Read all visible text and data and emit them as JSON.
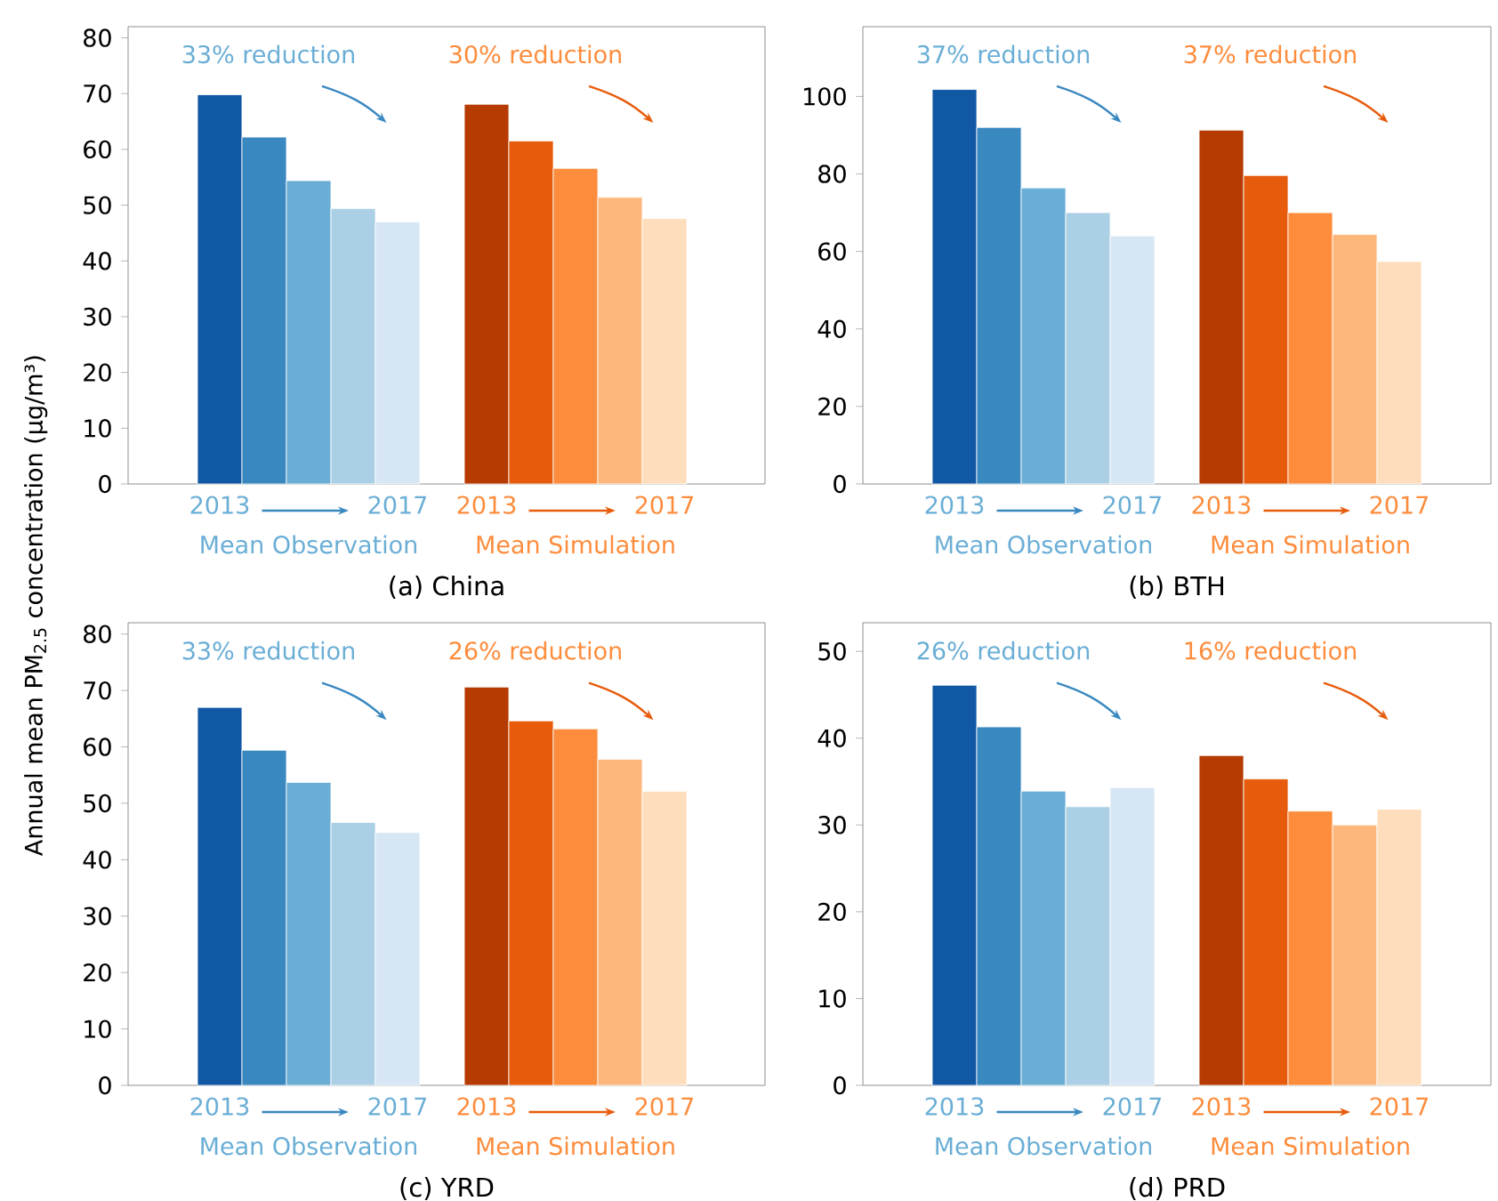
{
  "chart_data": [
    {
      "type": "bar",
      "title": "(a) China",
      "legend": "bottom",
      "ylabel": "Annual mean PM$_{2.5}$ concentration (μg/m³)",
      "categories": [
        "2013",
        null,
        null,
        null,
        "2017",
        null,
        "2013",
        null,
        null,
        null,
        "2017"
      ],
      "series": [
        {
          "name": "Mean Observation",
          "colors": [
            "#1158a4",
            "#3a88c0",
            "#6aaed6",
            "#abd0e6",
            "#d6e6f4",
            null,
            null,
            null,
            null,
            null,
            null
          ],
          "values": [
            69.8,
            62.2,
            54.4,
            49.4,
            47.0,
            null,
            null,
            null,
            null,
            null,
            null
          ]
        },
        {
          "name": "Mean Simulation",
          "colors": [
            null,
            null,
            null,
            null,
            null,
            null,
            "#b63b02",
            "#e75c0c",
            "#fd8c3c",
            "#fdb77d",
            "#fdddbc"
          ],
          "values": [
            null,
            null,
            null,
            null,
            null,
            null,
            68.1,
            61.5,
            56.6,
            51.4,
            47.6
          ]
        }
      ],
      "annotations": [
        "33% reduction",
        "30% reduction"
      ],
      "ylim": [
        0,
        82
      ],
      "yticks": [
        0,
        10,
        20,
        30,
        40,
        50,
        60,
        70,
        80
      ]
    },
    {
      "type": "bar",
      "title": "(b) BTH",
      "legend": "bottom",
      "categories": [
        "2013",
        null,
        null,
        null,
        "2017",
        null,
        "2013",
        null,
        null,
        null,
        "2017"
      ],
      "series": [
        {
          "name": "Mean Observation",
          "colors": [
            "#1158a4",
            "#3a88c0",
            "#6aaed6",
            "#abd0e6",
            "#d6e6f4",
            null,
            null,
            null,
            null,
            null,
            null
          ],
          "values": [
            101.8,
            92.0,
            76.4,
            70.0,
            64.0,
            null,
            null,
            null,
            null,
            null,
            null
          ]
        },
        {
          "name": "Mean Simulation",
          "colors": [
            null,
            null,
            null,
            null,
            null,
            null,
            "#b63b02",
            "#e75c0c",
            "#fd8c3c",
            "#fdb77d",
            "#fdddbc"
          ],
          "values": [
            null,
            null,
            null,
            null,
            null,
            null,
            91.3,
            79.6,
            70.0,
            64.4,
            57.4
          ]
        }
      ],
      "annotations": [
        "37% reduction",
        "37% reduction"
      ],
      "ylim": [
        0,
        118
      ],
      "yticks": [
        0,
        20,
        40,
        60,
        80,
        100
      ]
    },
    {
      "type": "bar",
      "title": "(c) YRD",
      "legend": "bottom",
      "categories": [
        "2013",
        null,
        null,
        null,
        "2017",
        null,
        "2013",
        null,
        null,
        null,
        "2017"
      ],
      "series": [
        {
          "name": "Mean Observation",
          "colors": [
            "#1158a4",
            "#3a88c0",
            "#6aaed6",
            "#abd0e6",
            "#d6e6f4",
            null,
            null,
            null,
            null,
            null,
            null
          ],
          "values": [
            67.0,
            59.4,
            53.7,
            46.6,
            44.8,
            null,
            null,
            null,
            null,
            null,
            null
          ]
        },
        {
          "name": "Mean Simulation",
          "colors": [
            null,
            null,
            null,
            null,
            null,
            null,
            "#b63b02",
            "#e75c0c",
            "#fd8c3c",
            "#fdb77d",
            "#fdddbc"
          ],
          "values": [
            null,
            null,
            null,
            null,
            null,
            null,
            70.6,
            64.6,
            63.2,
            57.8,
            52.1
          ]
        }
      ],
      "annotations": [
        "33% reduction",
        "26% reduction"
      ],
      "ylim": [
        0,
        82
      ],
      "yticks": [
        0,
        10,
        20,
        30,
        40,
        50,
        60,
        70,
        80
      ]
    },
    {
      "type": "bar",
      "title": "(d) PRD",
      "legend": "bottom",
      "categories": [
        "2013",
        null,
        null,
        null,
        "2017",
        null,
        "2013",
        null,
        null,
        null,
        "2017"
      ],
      "series": [
        {
          "name": "Mean Observation",
          "colors": [
            "#1158a4",
            "#3a88c0",
            "#6aaed6",
            "#abd0e6",
            "#d6e6f4",
            null,
            null,
            null,
            null,
            null,
            null
          ],
          "values": [
            46.1,
            41.3,
            33.9,
            32.1,
            34.3,
            null,
            null,
            null,
            null,
            null,
            null
          ]
        },
        {
          "name": "Mean Simulation",
          "colors": [
            null,
            null,
            null,
            null,
            null,
            null,
            "#b63b02",
            "#e75c0c",
            "#fd8c3c",
            "#fdb77d",
            "#fdddbc"
          ],
          "values": [
            null,
            null,
            null,
            null,
            null,
            null,
            38.0,
            35.3,
            31.6,
            30.0,
            31.8
          ]
        }
      ],
      "annotations": [
        "26% reduction",
        "16% reduction"
      ],
      "ylim": [
        0,
        53.3
      ],
      "yticks": [
        0,
        10,
        20,
        30,
        40,
        50
      ]
    }
  ]
}
